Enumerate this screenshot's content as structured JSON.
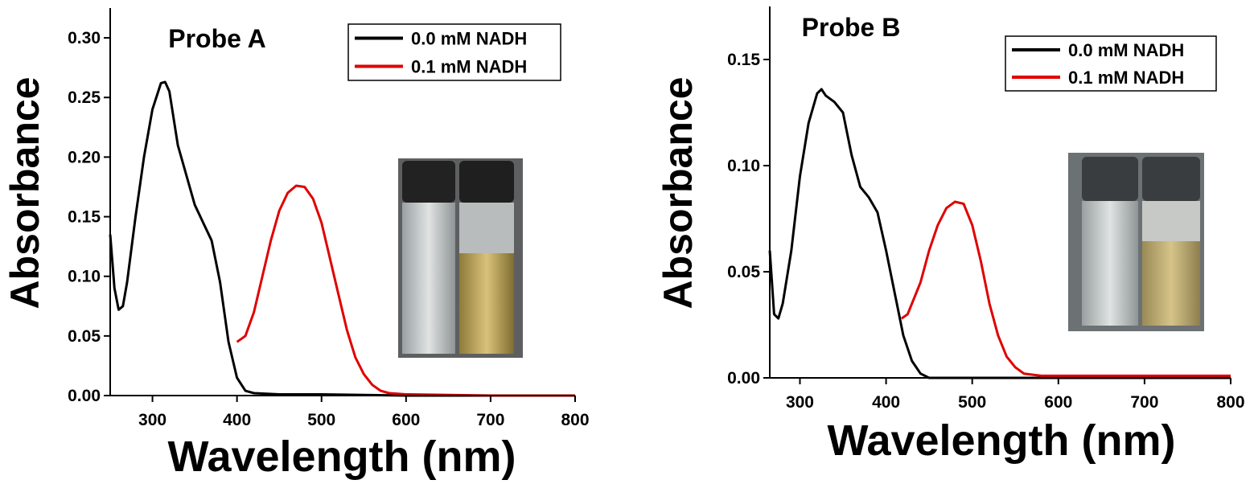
{
  "chart_data": [
    {
      "type": "line",
      "title": "Probe A",
      "x_label": "Wavelength (nm)",
      "y_label": "Absorbance",
      "xlim": [
        250,
        800
      ],
      "ylim": [
        0,
        0.325
      ],
      "xticks": [
        300,
        400,
        500,
        600,
        700,
        800
      ],
      "yticks": [
        {
          "value": 0,
          "label": "0.00"
        },
        {
          "value": 0.05,
          "label": "0.05"
        },
        {
          "value": 0.1,
          "label": "0.10"
        },
        {
          "value": 0.15,
          "label": "0.15"
        },
        {
          "value": 0.2,
          "label": "0.20"
        },
        {
          "value": 0.25,
          "label": "0.25"
        },
        {
          "value": 0.3,
          "label": "0.30"
        }
      ],
      "legend": "upper right",
      "series": [
        {
          "name": "0.0 mM NADH",
          "color": "#000000",
          "x": [
            250,
            255,
            260,
            265,
            270,
            280,
            290,
            300,
            310,
            315,
            320,
            330,
            340,
            350,
            360,
            370,
            380,
            390,
            400,
            410,
            420,
            450,
            500,
            600,
            700,
            800
          ],
          "values": [
            0.135,
            0.09,
            0.072,
            0.075,
            0.095,
            0.15,
            0.2,
            0.24,
            0.262,
            0.263,
            0.255,
            0.21,
            0.185,
            0.16,
            0.145,
            0.13,
            0.095,
            0.045,
            0.015,
            0.004,
            0.002,
            0.001,
            0.001,
            0,
            0,
            0
          ]
        },
        {
          "name": "0.1 mM NADH",
          "color": "#e00000",
          "x": [
            400,
            410,
            420,
            430,
            440,
            450,
            460,
            470,
            480,
            490,
            500,
            510,
            520,
            530,
            540,
            550,
            560,
            570,
            580,
            600,
            700,
            800
          ],
          "values": [
            0.045,
            0.05,
            0.07,
            0.1,
            0.13,
            0.155,
            0.17,
            0.176,
            0.175,
            0.165,
            0.145,
            0.115,
            0.085,
            0.055,
            0.032,
            0.018,
            0.009,
            0.004,
            0.002,
            0.001,
            0,
            0
          ]
        }
      ]
    },
    {
      "type": "line",
      "title": "Probe B",
      "x_label": "Wavelength (nm)",
      "y_label": "Absorbance",
      "xlim": [
        265,
        800
      ],
      "ylim": [
        0,
        0.175
      ],
      "xticks": [
        300,
        400,
        500,
        600,
        700,
        800
      ],
      "yticks": [
        {
          "value": 0,
          "label": "0.00"
        },
        {
          "value": 0.05,
          "label": "0.05"
        },
        {
          "value": 0.1,
          "label": "0.10"
        },
        {
          "value": 0.15,
          "label": "0.15"
        }
      ],
      "legend": "upper right",
      "series": [
        {
          "name": "0.0 mM NADH",
          "color": "#000000",
          "x": [
            265,
            270,
            275,
            280,
            290,
            300,
            310,
            320,
            325,
            330,
            340,
            350,
            360,
            370,
            380,
            390,
            400,
            410,
            420,
            430,
            440,
            450,
            500,
            600,
            800
          ],
          "values": [
            0.06,
            0.03,
            0.028,
            0.035,
            0.06,
            0.095,
            0.12,
            0.134,
            0.136,
            0.133,
            0.13,
            0.125,
            0.105,
            0.09,
            0.085,
            0.078,
            0.06,
            0.04,
            0.02,
            0.008,
            0.002,
            0,
            0,
            0,
            0
          ]
        },
        {
          "name": "0.1 mM NADH",
          "color": "#e00000",
          "x": [
            418,
            425,
            440,
            450,
            460,
            470,
            480,
            490,
            500,
            510,
            520,
            530,
            540,
            550,
            560,
            580,
            600,
            700,
            800
          ],
          "values": [
            0.028,
            0.03,
            0.045,
            0.06,
            0.072,
            0.08,
            0.083,
            0.082,
            0.072,
            0.055,
            0.035,
            0.02,
            0.01,
            0.005,
            0.002,
            0.001,
            0.001,
            0.001,
            0.001
          ]
        }
      ]
    }
  ]
}
